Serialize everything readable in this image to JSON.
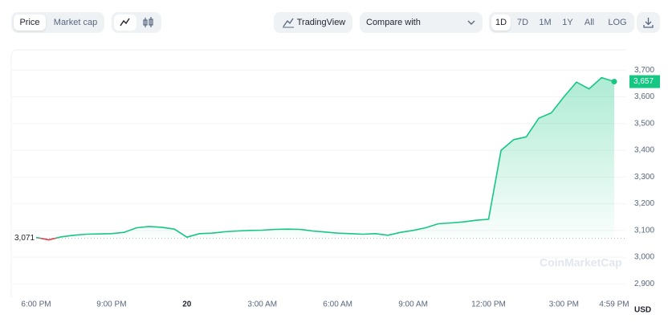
{
  "toolbar": {
    "type_tabs": [
      "Price",
      "Market cap"
    ],
    "tradingview": "TradingView",
    "compare": "Compare with",
    "ranges": [
      "1D",
      "7D",
      "1M",
      "1Y",
      "All"
    ],
    "log": "LOG"
  },
  "chart_data": {
    "type": "line",
    "categories": [
      "6:00 PM",
      null,
      null,
      null,
      null,
      null,
      "9:00 PM",
      null,
      null,
      null,
      null,
      null,
      "20",
      null,
      null,
      null,
      null,
      null,
      "3:00 AM",
      null,
      null,
      null,
      null,
      null,
      "6:00 AM",
      null,
      null,
      null,
      null,
      null,
      "9:00 AM",
      null,
      null,
      null,
      null,
      null,
      "12:00 PM",
      null,
      null,
      null,
      null,
      null,
      "3:00 PM",
      null,
      null,
      null,
      "4:59 PM"
    ],
    "series": [
      {
        "color": "#16c784",
        "down_color": "#ea3943",
        "values": [
          3074,
          3065,
          3076,
          3082,
          3086,
          3087,
          3088,
          3093,
          3110,
          3115,
          3112,
          3105,
          3075,
          3088,
          3090,
          3095,
          3098,
          3100,
          3101,
          3104,
          3105,
          3104,
          3098,
          3094,
          3090,
          3088,
          3086,
          3088,
          3082,
          3093,
          3100,
          3110,
          3125,
          3128,
          3132,
          3138,
          3142,
          3400,
          3440,
          3450,
          3520,
          3540,
          3600,
          3655,
          3630,
          3672,
          3657
        ]
      }
    ],
    "ylim": [
      2850,
      3776
    ],
    "yticks": [
      {
        "value": 2900,
        "label": "2,900"
      },
      {
        "value": 3000,
        "label": "3,000"
      },
      {
        "value": 3100,
        "label": "3,100"
      },
      {
        "value": 3200,
        "label": "3,200"
      },
      {
        "value": 3300,
        "label": "3,300"
      },
      {
        "value": 3400,
        "label": "3,400"
      },
      {
        "value": 3500,
        "label": "3,500"
      },
      {
        "value": 3600,
        "label": "3,600"
      },
      {
        "value": 3700,
        "label": "3,700"
      }
    ],
    "grid": true,
    "reference_line": {
      "value": 3071,
      "label": "3,071"
    },
    "current_price": {
      "value": 3657,
      "label": "3,657"
    },
    "y_unit": "USD",
    "watermark": "CoinMarketCap"
  }
}
